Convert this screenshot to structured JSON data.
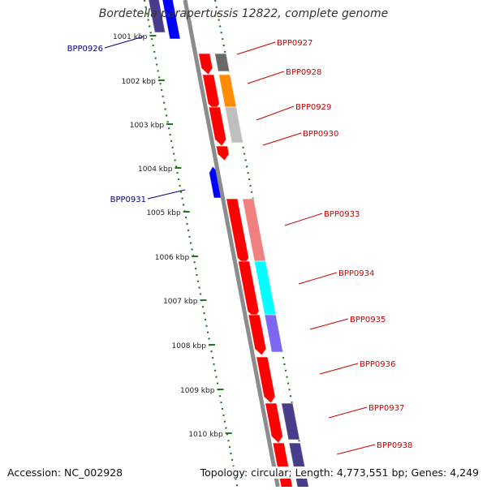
{
  "title": "Bordetella parapertussis 12822, complete genome",
  "accession": "Accession: NC_002928",
  "summary": "Topology: circular; Length: 4,773,551 bp; Genes: 4,249",
  "colors": {
    "background": "#ffffff",
    "backbone": "#8c8c8c",
    "tick": "#1f7a1f",
    "forward_label": "#cc0000",
    "reverse_label": "#00008b",
    "gene_red": "#ff0000",
    "gene_blue": "#0000ff"
  },
  "scale_labels": [
    {
      "kbp": 1001,
      "text": "1001 kbp"
    },
    {
      "kbp": 1002,
      "text": "1002 kbp"
    },
    {
      "kbp": 1003,
      "text": "1003 kbp"
    },
    {
      "kbp": 1004,
      "text": "1004 kbp"
    },
    {
      "kbp": 1005,
      "text": "1005 kbp"
    },
    {
      "kbp": 1006,
      "text": "1006 kbp"
    },
    {
      "kbp": 1007,
      "text": "1007 kbp"
    },
    {
      "kbp": 1008,
      "text": "1008 kbp"
    },
    {
      "kbp": 1009,
      "text": "1009 kbp"
    },
    {
      "kbp": 1010,
      "text": "1010 kbp"
    }
  ],
  "gene_labels": [
    {
      "name": "BPP0926",
      "strand": "reverse"
    },
    {
      "name": "BPP0927",
      "strand": "forward"
    },
    {
      "name": "BPP0928",
      "strand": "forward"
    },
    {
      "name": "BPP0929",
      "strand": "forward"
    },
    {
      "name": "BPP0930",
      "strand": "forward"
    },
    {
      "name": "BPP0931",
      "strand": "reverse"
    },
    {
      "name": "BPP0933",
      "strand": "forward"
    },
    {
      "name": "BPP0934",
      "strand": "forward"
    },
    {
      "name": "BPP0935",
      "strand": "forward"
    },
    {
      "name": "BPP0936",
      "strand": "forward"
    },
    {
      "name": "BPP0937",
      "strand": "forward"
    },
    {
      "name": "BPP0938",
      "strand": "forward"
    }
  ],
  "cog_colors": [
    {
      "name": "BPP0926",
      "color": "#483d8b"
    },
    {
      "name": "BPP0927",
      "color": "#696969"
    },
    {
      "name": "BPP0928",
      "color": "#ff8c00"
    },
    {
      "name": "BPP0929",
      "color": "#bebebe"
    },
    {
      "name": "BPP0933",
      "color": "#f08080"
    },
    {
      "name": "BPP0934",
      "color": "#00ffff"
    },
    {
      "name": "BPP0935",
      "color": "#7b68ee"
    },
    {
      "name": "BPP0937",
      "color": "#483d8b"
    },
    {
      "name": "BPP0938",
      "color": "#483d8b"
    }
  ]
}
